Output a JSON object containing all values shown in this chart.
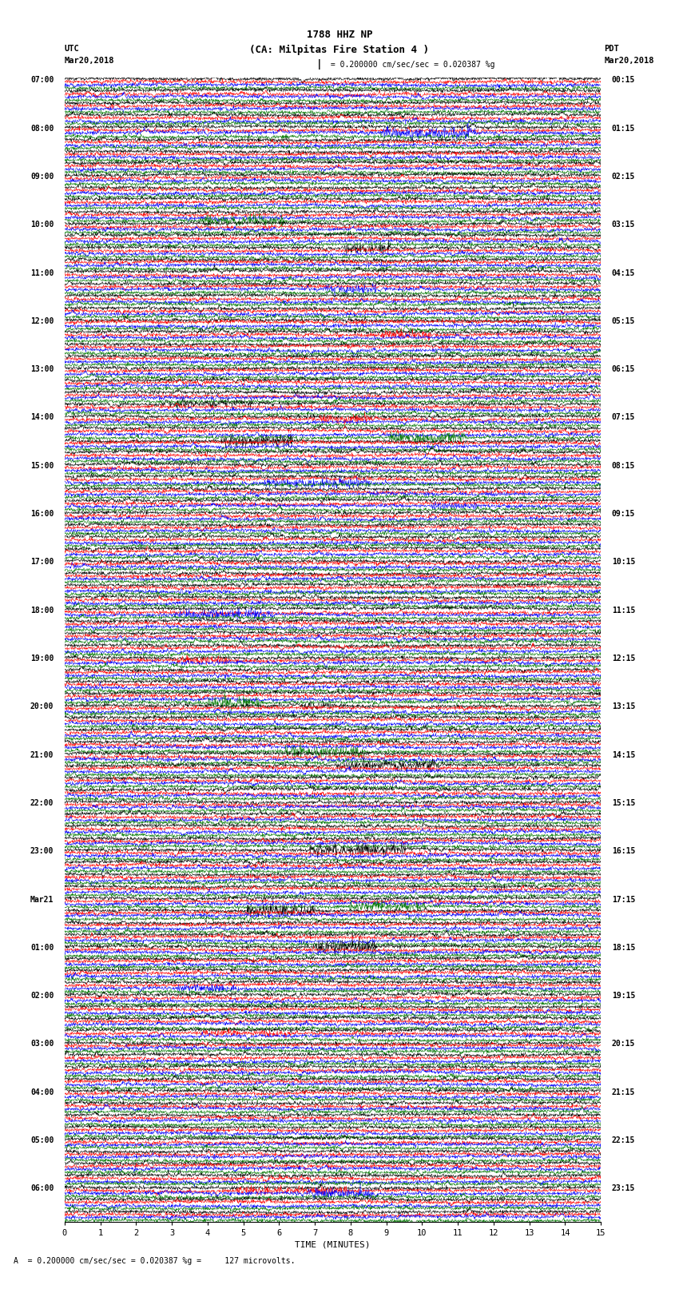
{
  "title_line1": "1788 HHZ NP",
  "title_line2": "(CA: Milpitas Fire Station 4 )",
  "scale_label": "= 0.200000 cm/sec/sec = 0.020387 %g",
  "footer_label": "A  = 0.200000 cm/sec/sec = 0.020387 %g =     127 microvolts.",
  "left_label_top": "UTC",
  "left_label_date": "Mar20,2018",
  "right_label_top": "PDT",
  "right_label_date": "Mar20,2018",
  "xlabel": "TIME (MINUTES)",
  "utc_times": [
    "07:00",
    "",
    "",
    "",
    "08:00",
    "",
    "",
    "",
    "09:00",
    "",
    "",
    "",
    "10:00",
    "",
    "",
    "",
    "11:00",
    "",
    "",
    "",
    "12:00",
    "",
    "",
    "",
    "13:00",
    "",
    "",
    "",
    "14:00",
    "",
    "",
    "",
    "15:00",
    "",
    "",
    "",
    "16:00",
    "",
    "",
    "",
    "17:00",
    "",
    "",
    "",
    "18:00",
    "",
    "",
    "",
    "19:00",
    "",
    "",
    "",
    "20:00",
    "",
    "",
    "",
    "21:00",
    "",
    "",
    "",
    "22:00",
    "",
    "",
    "",
    "23:00",
    "",
    "",
    "",
    "Mar21",
    "",
    "",
    "",
    "01:00",
    "",
    "",
    "",
    "02:00",
    "",
    "",
    "",
    "03:00",
    "",
    "",
    "",
    "04:00",
    "",
    "",
    "",
    "05:00",
    "",
    "",
    "",
    "06:00",
    "",
    ""
  ],
  "pdt_times": [
    "00:15",
    "",
    "",
    "",
    "01:15",
    "",
    "",
    "",
    "02:15",
    "",
    "",
    "",
    "03:15",
    "",
    "",
    "",
    "04:15",
    "",
    "",
    "",
    "05:15",
    "",
    "",
    "",
    "06:15",
    "",
    "",
    "",
    "07:15",
    "",
    "",
    "",
    "08:15",
    "",
    "",
    "",
    "09:15",
    "",
    "",
    "",
    "10:15",
    "",
    "",
    "",
    "11:15",
    "",
    "",
    "",
    "12:15",
    "",
    "",
    "",
    "13:15",
    "",
    "",
    "",
    "14:15",
    "",
    "",
    "",
    "15:15",
    "",
    "",
    "",
    "16:15",
    "",
    "",
    "",
    "17:15",
    "",
    "",
    "",
    "18:15",
    "",
    "",
    "",
    "19:15",
    "",
    "",
    "",
    "20:15",
    "",
    "",
    "",
    "21:15",
    "",
    "",
    "",
    "22:15",
    "",
    "",
    "",
    "23:15",
    "",
    ""
  ],
  "n_rows": 95,
  "traces_per_row": 4,
  "trace_colors": [
    "#000000",
    "#ff0000",
    "#0000ff",
    "#007700"
  ],
  "background_color": "#ffffff",
  "xmin": 0,
  "xmax": 15,
  "xticks": [
    0,
    1,
    2,
    3,
    4,
    5,
    6,
    7,
    8,
    9,
    10,
    11,
    12,
    13,
    14,
    15
  ]
}
